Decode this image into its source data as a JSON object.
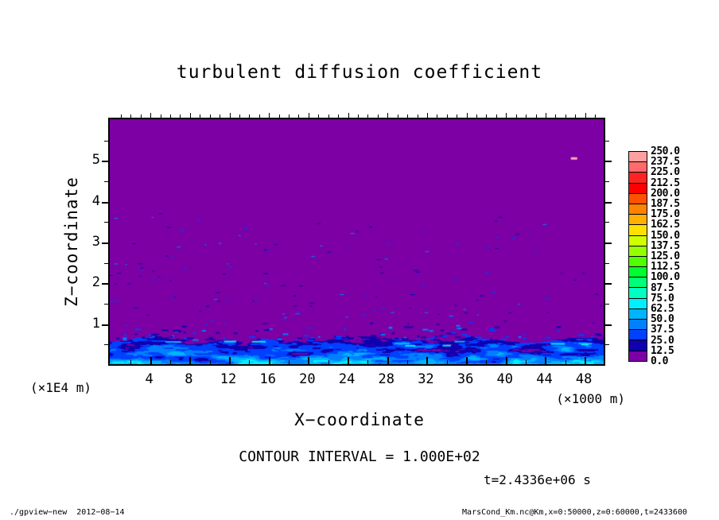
{
  "title": "turbulent diffusion coefficient",
  "axes": {
    "x": {
      "label": "X−coordinate",
      "unit": "(×1000 m)",
      "tick_labels": [
        "4",
        "8",
        "12",
        "16",
        "20",
        "24",
        "28",
        "32",
        "36",
        "40",
        "44",
        "48"
      ],
      "tick_values": [
        4,
        8,
        12,
        16,
        20,
        24,
        28,
        32,
        36,
        40,
        44,
        48
      ],
      "lim": [
        0,
        50
      ],
      "minor_step": 2,
      "major_step": 4,
      "top_tick_step": 1
    },
    "y": {
      "label": "Z−coordinate",
      "unit": "(×1E4 m)",
      "tick_labels": [
        "1",
        "2",
        "3",
        "4",
        "5"
      ],
      "tick_values": [
        1,
        2,
        3,
        4,
        5
      ],
      "lim": [
        0,
        6
      ],
      "minor_step": 0.5,
      "major_step": 1
    }
  },
  "colorbar": {
    "labels": [
      "250.0",
      "237.5",
      "225.0",
      "212.5",
      "200.0",
      "187.5",
      "175.0",
      "162.5",
      "150.0",
      "137.5",
      "125.0",
      "112.5",
      "100.0",
      "87.5",
      "75.0",
      "62.5",
      "50.0",
      "37.5",
      "25.0",
      "12.5",
      "0.0"
    ]
  },
  "notes": {
    "contour_interval": "CONTOUR INTERVAL = 1.000E+02",
    "time": "t=2.4336e+06 s"
  },
  "footer": {
    "left": "./gpview−new  2012−08−14",
    "right": "MarsCond_Km.nc@Km,x=0:50000,z=0:60000,t=2433600"
  },
  "chart_data": {
    "type": "heatmap",
    "title": "turbulent diffusion coefficient",
    "xlabel": "X-coordinate",
    "x_unit_scale": "×1000 m",
    "xlim": [
      0,
      50
    ],
    "x_ticks": [
      4,
      8,
      12,
      16,
      20,
      24,
      28,
      32,
      36,
      40,
      44,
      48
    ],
    "ylabel": "Z-coordinate",
    "y_unit_scale": "×1E4 m",
    "ylim": [
      0,
      6
    ],
    "y_ticks": [
      1,
      2,
      3,
      4,
      5
    ],
    "contour_interval": 100.0,
    "time_seconds": 2433600,
    "value_levels": [
      0.0,
      12.5,
      25.0,
      37.5,
      50.0,
      62.5,
      75.0,
      87.5,
      100.0,
      112.5,
      125.0,
      137.5,
      150.0,
      162.5,
      175.0,
      187.5,
      200.0,
      212.5,
      225.0,
      237.5,
      250.0
    ],
    "palette": [
      "#7C00A4",
      "#1000B0",
      "#0040FF",
      "#0080FF",
      "#00B4FF",
      "#00F0FF",
      "#00FFC0",
      "#00FF78",
      "#00FF30",
      "#50FF00",
      "#98FF00",
      "#D0FF00",
      "#FFE000",
      "#FFB000",
      "#FF8200",
      "#FF5200",
      "#FF0000",
      "#FF2424",
      "#FF6A6A",
      "#FFA0A0"
    ],
    "legend_position": "right",
    "grid": false,
    "field_summary": {
      "background_value_range": [
        0,
        12.5
      ],
      "background_color": "#7C00A4",
      "turbulent_layer": {
        "z_top_approx_1e4m": 0.6,
        "value_range": [
          12.5,
          87.5
        ],
        "description": "wavy near-surface turbulent mixing layer of enhanced eddy diffusion (blue/cyan) below z≈0.6×1E4 m"
      },
      "scattered_specks": {
        "z_range_1e4m": [
          0.6,
          3.5
        ],
        "value_range": [
          12.5,
          50
        ],
        "description": "sparse small pockets of weak enhanced diffusion above the mixed layer"
      },
      "hot_spot": {
        "x_1000m": 47,
        "z_1e4m": 5.05,
        "color": "#FFB0B0"
      }
    }
  }
}
